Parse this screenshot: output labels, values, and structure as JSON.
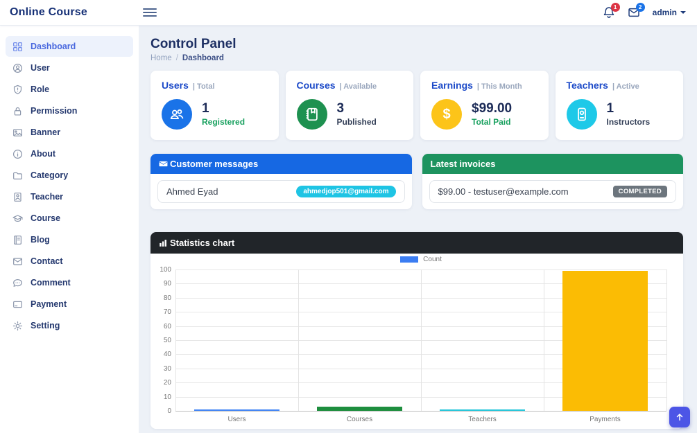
{
  "navbar": {
    "brand": "Online Course",
    "admin_label": "admin",
    "bell_badge": "1",
    "mail_badge": "2"
  },
  "page": {
    "title": "Control Panel",
    "breadcrumb": {
      "home": "Home",
      "separator": "/",
      "current": "Dashboard"
    }
  },
  "sidebar": {
    "items": [
      {
        "label": "Dashboard",
        "icon": "dashboard-grid-icon",
        "active": true
      },
      {
        "label": "User",
        "icon": "user-person-icon",
        "active": false
      },
      {
        "label": "Role",
        "icon": "role-shield-icon",
        "active": false
      },
      {
        "label": "Permission",
        "icon": "permission-lock-icon",
        "active": false
      },
      {
        "label": "Banner",
        "icon": "banner-image-icon",
        "active": false
      },
      {
        "label": "About",
        "icon": "about-info-icon",
        "active": false
      },
      {
        "label": "Category",
        "icon": "category-folder-icon",
        "active": false
      },
      {
        "label": "Teacher",
        "icon": "teacher-badge-icon",
        "active": false
      },
      {
        "label": "Course",
        "icon": "course-mortarboard-icon",
        "active": false
      },
      {
        "label": "Blog",
        "icon": "blog-journal-icon",
        "active": false
      },
      {
        "label": "Contact",
        "icon": "contact-envelope-icon",
        "active": false
      },
      {
        "label": "Comment",
        "icon": "comment-chat-icon",
        "active": false
      },
      {
        "label": "Payment",
        "icon": "payment-card-icon",
        "active": false
      },
      {
        "label": "Setting",
        "icon": "setting-gear-icon",
        "active": false
      }
    ]
  },
  "stats": [
    {
      "title": "Users",
      "subtitle": "| Total",
      "value": "1",
      "label": "Registered",
      "icon": "users-people-icon",
      "icon_bg": "#1a73e8",
      "label_color": "#17a05e"
    },
    {
      "title": "Courses",
      "subtitle": "| Available",
      "value": "3",
      "label": "Published",
      "icon": "courses-book-icon",
      "icon_bg": "#1e9150",
      "label_color": "#333f57"
    },
    {
      "title": "Earnings",
      "subtitle": "| This Month",
      "value": "$99.00",
      "label": "Total Paid",
      "icon": "earnings-dollar-icon",
      "icon_bg": "#fcc419",
      "label_color": "#17a05e"
    },
    {
      "title": "Teachers",
      "subtitle": "| Active",
      "value": "1",
      "label": "Instructors",
      "icon": "teachers-tablet-icon",
      "icon_bg": "#1ec9e8",
      "label_color": "#333f57"
    }
  ],
  "messages_panel": {
    "title": "Customer messages",
    "header_color": "#1668e3",
    "item": {
      "name": "Ahmed Eyad",
      "email_badge": "ahmedjop501@gmail.com",
      "badge_color": "#1ec4e4"
    }
  },
  "invoices_panel": {
    "title": "Latest invoices",
    "header_color": "#1d935f",
    "item": {
      "text": "$99.00 - testuser@example.com",
      "status_badge": "COMPLETED",
      "badge_color": "#6c757d"
    }
  },
  "chart_panel": {
    "title": "Statistics chart",
    "header_color": "#212529"
  },
  "chart_data": {
    "type": "bar",
    "title": "Statistics chart",
    "categories": [
      "Users",
      "Courses",
      "Teachers",
      "Payments"
    ],
    "series": [
      {
        "name": "Count",
        "values": [
          1,
          3,
          1,
          99
        ]
      }
    ],
    "bar_colors": [
      "#4285f4",
      "#1e8e3e",
      "#26c6da",
      "#fbbc04"
    ],
    "xlabel": "",
    "ylabel": "",
    "ylim": [
      0,
      100
    ],
    "yticks": [
      0,
      10,
      20,
      30,
      40,
      50,
      60,
      70,
      80,
      90,
      100
    ],
    "grid": true,
    "legend_position": "top-center",
    "legend_color": "#3b7df2"
  }
}
